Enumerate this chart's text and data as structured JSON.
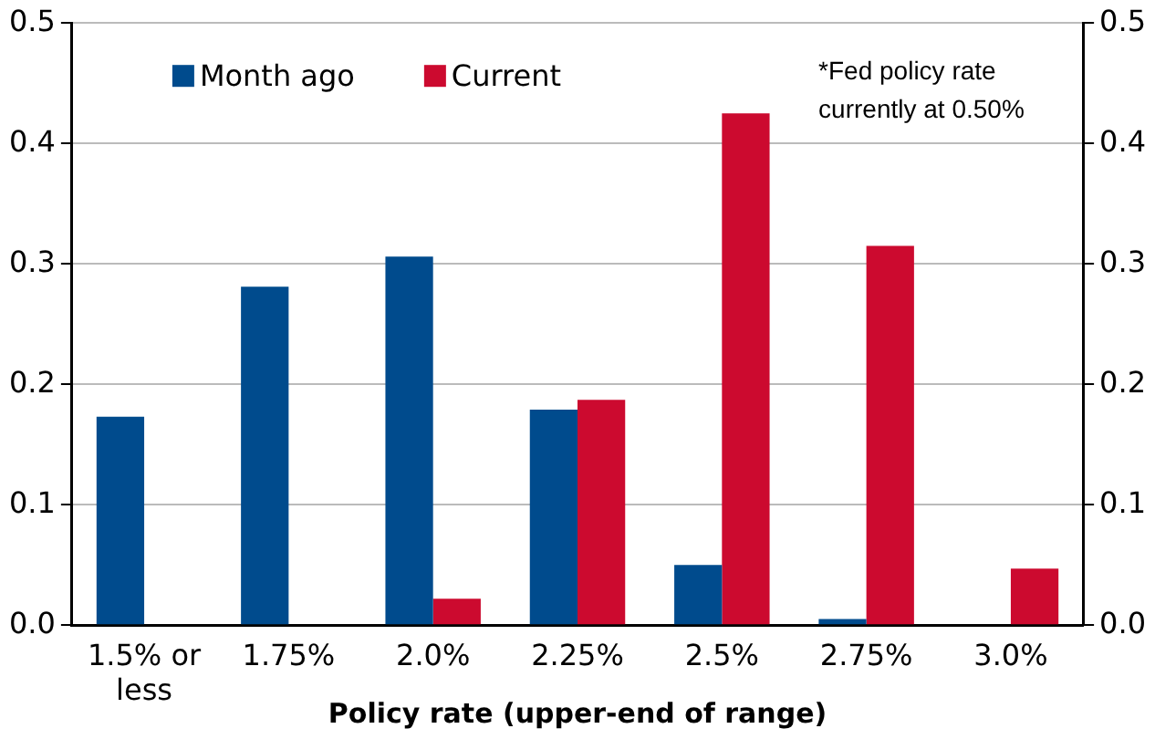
{
  "chart_data": {
    "type": "bar",
    "xlabel": "Policy rate (upper-end of range)",
    "categories": [
      "1.5% or less",
      "1.75%",
      "2.0%",
      "2.25%",
      "2.5%",
      "2.75%",
      "3.0%"
    ],
    "series": [
      {
        "name": "Month ago",
        "color": "#004b8d",
        "values": [
          0.173,
          0.281,
          0.306,
          0.179,
          0.05,
          0.005,
          0
        ]
      },
      {
        "name": "Current",
        "color": "#cc0a2f",
        "values": [
          0,
          0,
          0.022,
          0.187,
          0.425,
          0.315,
          0.047
        ]
      }
    ],
    "ylim": [
      0,
      0.5
    ],
    "yticks": [
      {
        "value": 0,
        "label": "0.0"
      },
      0.1,
      0.2,
      0.3,
      0.4,
      0.5
    ],
    "y2lim": [
      0,
      0.5
    ],
    "y2ticks": [
      {
        "value": 0,
        "label": "0.0"
      },
      0.1,
      0.2,
      0.3,
      0.4,
      0.5
    ],
    "grid": "y",
    "legend": "top left",
    "annotations": [
      "*Fed policy rate currently at 0.50%"
    ]
  }
}
